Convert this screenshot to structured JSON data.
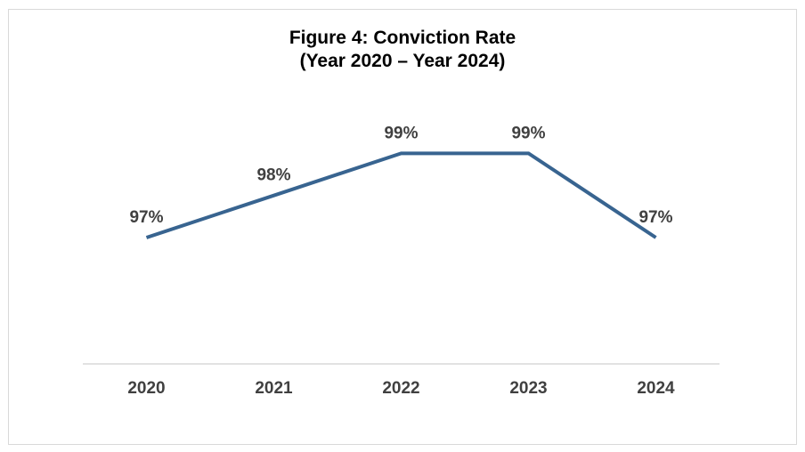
{
  "chart_data": {
    "type": "line",
    "title": "Figure 4: Conviction Rate",
    "subtitle": "(Year 2020 – Year 2024)",
    "categories": [
      "2020",
      "2021",
      "2022",
      "2023",
      "2024"
    ],
    "values": [
      97,
      98,
      99,
      99,
      97
    ],
    "data_labels": [
      "97%",
      "98%",
      "99%",
      "99%",
      "97%"
    ],
    "series": [
      {
        "values": [
          97,
          98,
          99,
          99,
          97
        ]
      }
    ],
    "ylim": [
      94,
      100
    ],
    "grid": false,
    "legend": "none",
    "line_color": "#386490",
    "axis_color": "#d9d9d9",
    "label_color": "#404040"
  }
}
